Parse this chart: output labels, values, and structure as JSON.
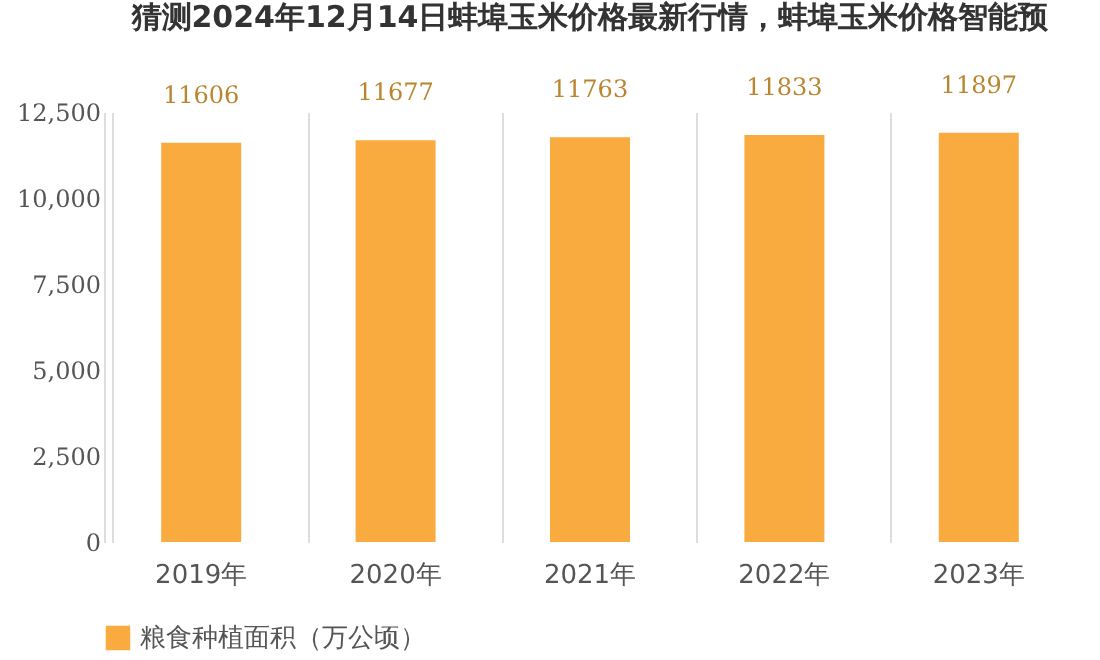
{
  "chart_data": {
    "type": "bar",
    "title": "猜测2024年12月14日蚌埠玉米价格最新行情，蚌埠玉米价格智能预",
    "categories": [
      "2019年",
      "2020年",
      "2021年",
      "2022年",
      "2023年"
    ],
    "series": [
      {
        "name": "粮食种植面积（万公顷）",
        "color": "#f9ab3f",
        "values": [
          11606,
          11677,
          11763,
          11833,
          11897
        ]
      }
    ],
    "ylim": [
      0,
      12500
    ],
    "yticks": [
      {
        "value": 0,
        "label": "0"
      },
      {
        "value": 2500,
        "label": "2,500"
      },
      {
        "value": 5000,
        "label": "5,000"
      },
      {
        "value": 7500,
        "label": "7,500"
      },
      {
        "value": 10000,
        "label": "10,000"
      },
      {
        "value": 12500,
        "label": "12,500"
      }
    ],
    "grid": "x",
    "legend": "bottom",
    "data_labels": true
  }
}
